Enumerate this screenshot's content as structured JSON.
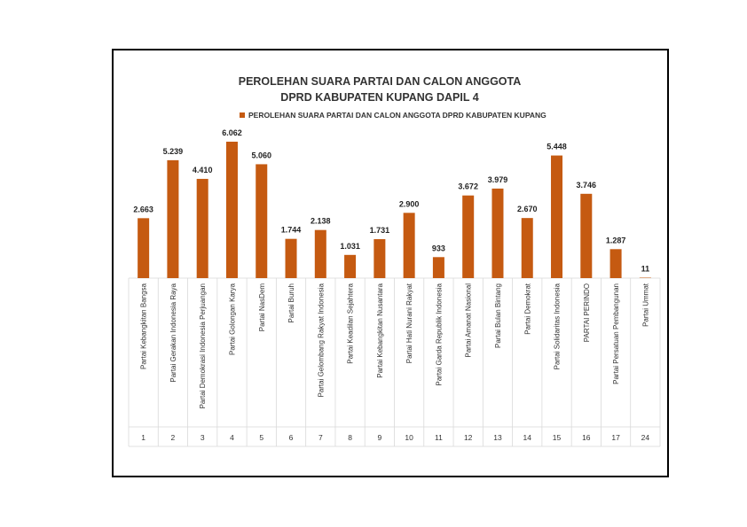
{
  "chart_data": {
    "type": "bar",
    "title_lines": [
      "PEROLEHAN SUARA PARTAI DAN CALON ANGGOTA",
      "DPRD KABUPATEN KUPANG DAPIL 4"
    ],
    "legend": "PEROLEHAN SUARA PARTAI DAN CALON ANGGOTA DPRD KABUPATEN KUPANG",
    "bar_color": "#C55A11",
    "categories": [
      "Partai Kebangkitan Bangsa",
      "Partai Gerakan Indonesia Raya",
      "Partai Demokrasi Indonesia Perjuangan",
      "Partai Golongan Karya",
      "Partai NasDem",
      "Partai Buruh",
      "Partai Gelombang Rakyat Indonesia",
      "Partai Keadilan Sejahtera",
      "Partai Kebangkitan Nusantara",
      "Partai Hati Nurani Rakyat",
      "Partai Garda Republik Indonesia",
      "Partai Amanat Nasional",
      "Partai Bulan Bintang",
      "Partai Demokrat",
      "Partai Solidaritas Indonesia",
      "PARTAI PERINDO",
      "Partai Persatuan Pembangunan",
      "Partai Ummat"
    ],
    "party_numbers": [
      "1",
      "2",
      "3",
      "4",
      "5",
      "6",
      "7",
      "8",
      "9",
      "10",
      "11",
      "12",
      "13",
      "14",
      "15",
      "16",
      "17",
      "24"
    ],
    "values": [
      2663,
      5239,
      4410,
      6062,
      5060,
      1744,
      2138,
      1031,
      1731,
      2900,
      933,
      3672,
      3979,
      2670,
      5448,
      3746,
      1287,
      11
    ],
    "value_labels": [
      "2.663",
      "5.239",
      "4.410",
      "6.062",
      "5.060",
      "1.744",
      "2.138",
      "1.031",
      "1.731",
      "2.900",
      "933",
      "3.672",
      "3.979",
      "2.670",
      "5.448",
      "3.746",
      "1.287",
      "11"
    ],
    "ylim": [
      0,
      6100
    ],
    "xlabel": "",
    "ylabel": ""
  }
}
